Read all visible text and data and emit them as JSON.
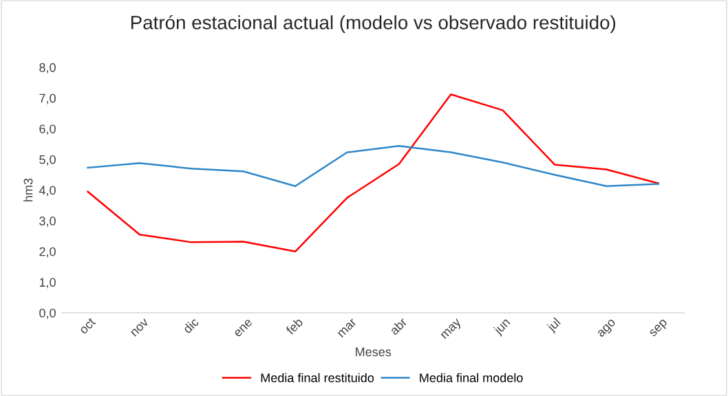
{
  "chart_data": {
    "type": "line",
    "title": "Patrón estacional actual (modelo vs observado restituido)",
    "xlabel": "Meses",
    "ylabel": "hm3",
    "categories": [
      "oct",
      "nov",
      "dic",
      "ene",
      "feb",
      "mar",
      "abr",
      "may",
      "jun",
      "jul",
      "ago",
      "sep"
    ],
    "series": [
      {
        "name": "Media final restituido",
        "color": "#ff0000",
        "values": [
          3.95,
          2.55,
          2.3,
          2.32,
          2.0,
          3.75,
          4.85,
          7.12,
          6.6,
          4.83,
          4.67,
          4.22
        ]
      },
      {
        "name": "Media final modelo",
        "color": "#2e86c8",
        "values": [
          4.73,
          4.88,
          4.7,
          4.61,
          4.13,
          5.23,
          5.44,
          5.23,
          4.9,
          4.5,
          4.13,
          4.2
        ]
      }
    ],
    "ylim": [
      0,
      8
    ],
    "yticks": [
      {
        "value": 0,
        "label": "0,0"
      },
      {
        "value": 1,
        "label": "1,0"
      },
      {
        "value": 2,
        "label": "2,0"
      },
      {
        "value": 3,
        "label": "3,0"
      },
      {
        "value": 4,
        "label": "4,0"
      },
      {
        "value": 5,
        "label": "5,0"
      },
      {
        "value": 6,
        "label": "6,0"
      },
      {
        "value": 7,
        "label": "7,0"
      },
      {
        "value": 8,
        "label": "8,0"
      }
    ],
    "grid": false,
    "legend": "bottom",
    "marker": "none",
    "line_style": "solid"
  }
}
